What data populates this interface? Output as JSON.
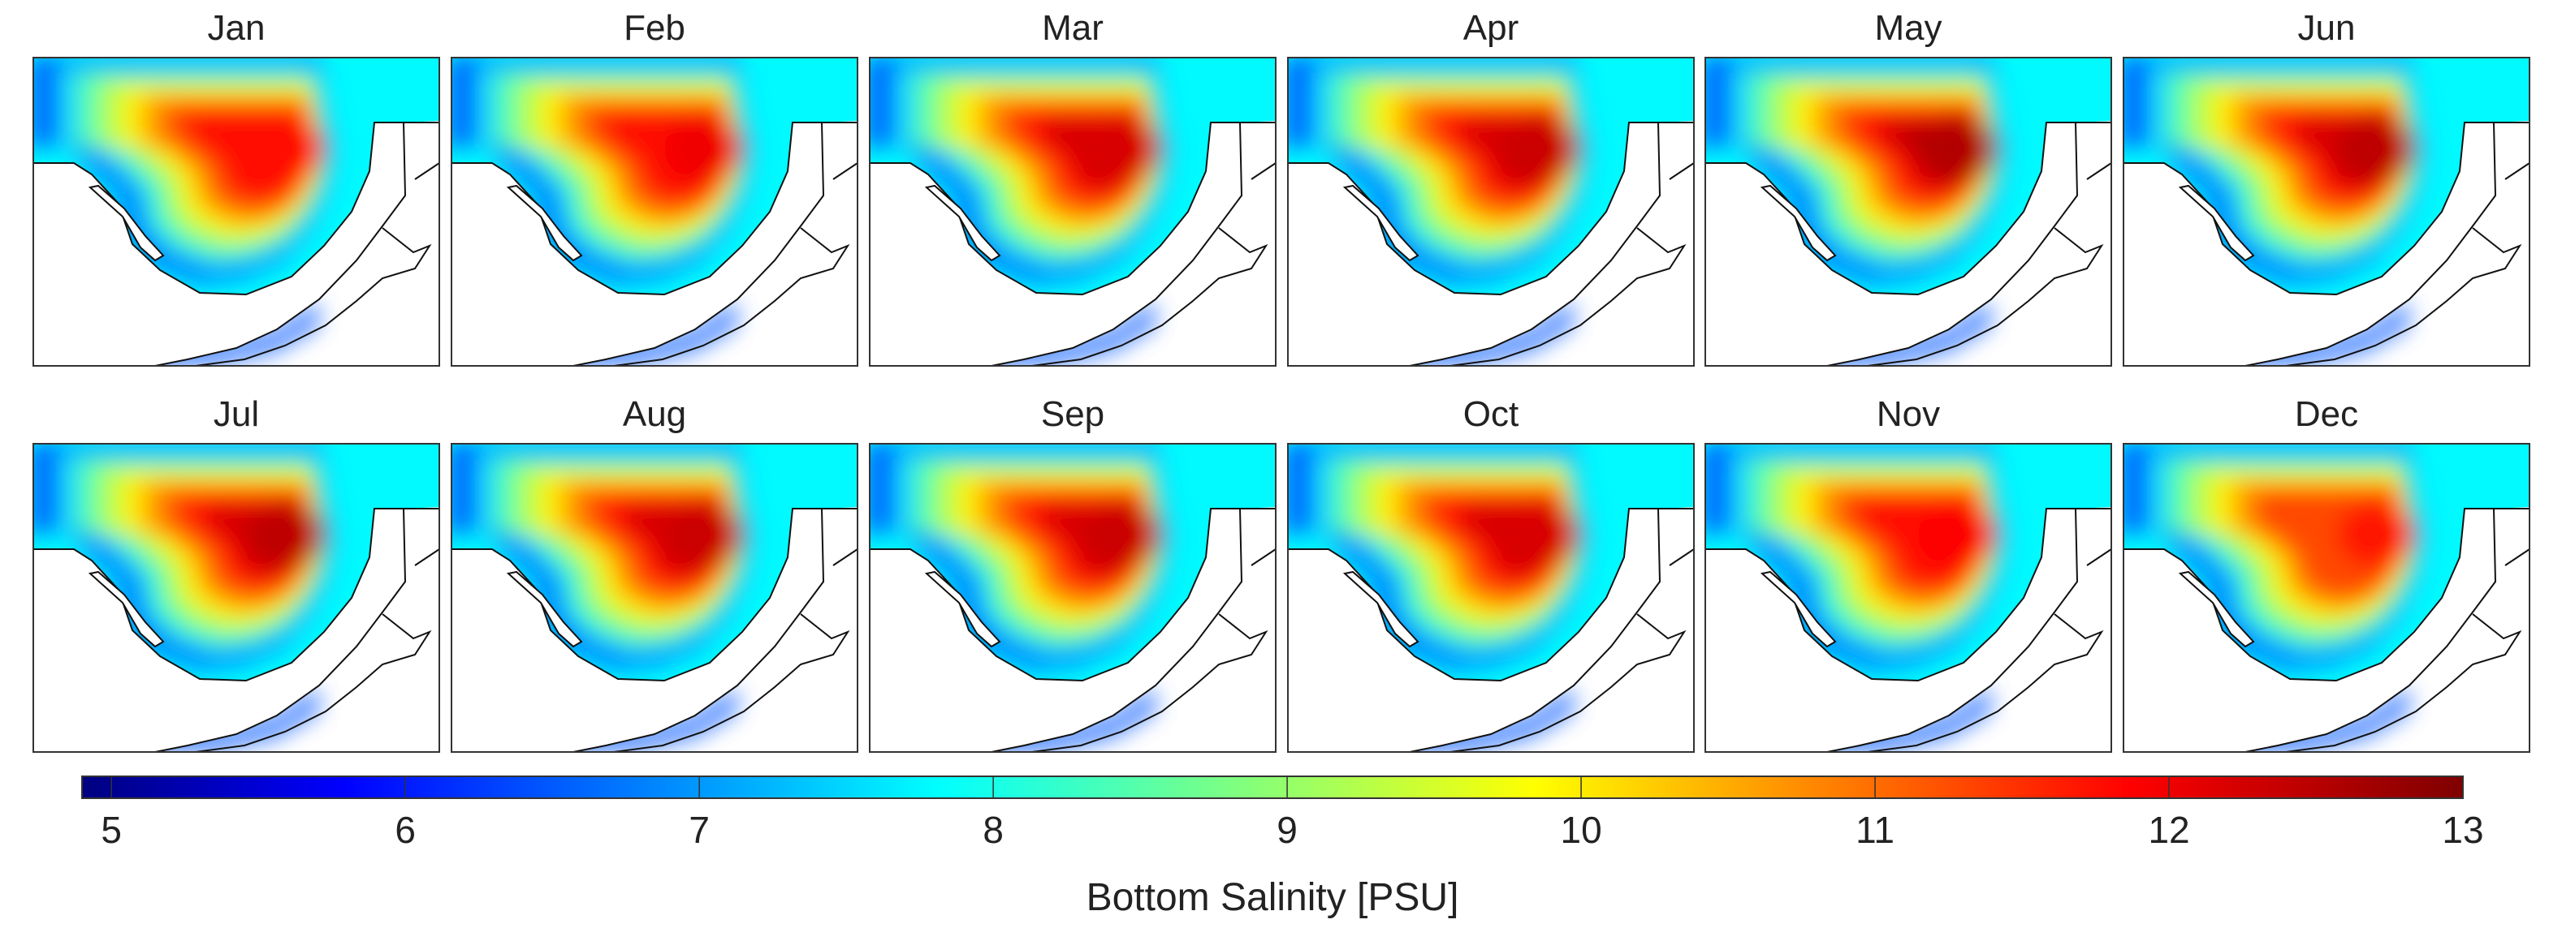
{
  "chart_data": {
    "type": "heatmap",
    "title": "",
    "layout": "small multiples, 2 rows x 6 columns",
    "panels": [
      {
        "title": "Jan",
        "max_salinity": 11.9
      },
      {
        "title": "Feb",
        "max_salinity": 12.1
      },
      {
        "title": "Mar",
        "max_salinity": 12.3
      },
      {
        "title": "Apr",
        "max_salinity": 12.4
      },
      {
        "title": "May",
        "max_salinity": 12.6
      },
      {
        "title": "Jun",
        "max_salinity": 12.5
      },
      {
        "title": "Jul",
        "max_salinity": 12.5
      },
      {
        "title": "Aug",
        "max_salinity": 12.4
      },
      {
        "title": "Sep",
        "max_salinity": 12.4
      },
      {
        "title": "Oct",
        "max_salinity": 12.3
      },
      {
        "title": "Nov",
        "max_salinity": 12.0
      },
      {
        "title": "Dec",
        "max_salinity": 11.8
      }
    ],
    "colorbar": {
      "label": "Bottom Salinity [PSU]",
      "range": [
        4.9,
        13.0
      ],
      "ticks": [
        5,
        6,
        7,
        8,
        9,
        10,
        11,
        12,
        13
      ],
      "tick_labels": [
        "5",
        "6",
        "7",
        "8",
        "9",
        "10",
        "11",
        "12",
        "13"
      ],
      "colormap": "jet",
      "colors": [
        "#000080",
        "#0000ff",
        "#0080ff",
        "#00ffff",
        "#80ff80",
        "#ffff00",
        "#ff8000",
        "#ff0000",
        "#800000"
      ]
    }
  },
  "colors": {
    "land": "#ffffff",
    "coast": "#111111",
    "frame": "#333333"
  }
}
